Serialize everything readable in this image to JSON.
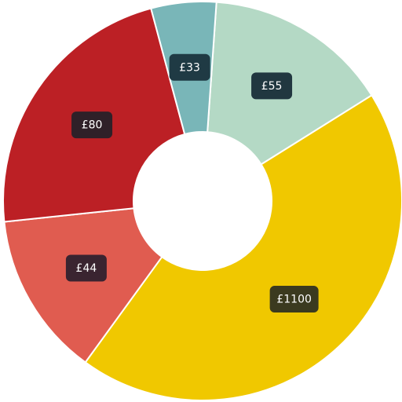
{
  "chart_data": {
    "type": "pie",
    "variant": "donut",
    "title": "",
    "slices": [
      {
        "label": "£55",
        "value": 55,
        "color": "#b4d9c5",
        "label_bg": "#213740"
      },
      {
        "label": "£1100",
        "value": 1100,
        "color": "#f0c800",
        "label_bg": "#3b3a1f"
      },
      {
        "label": "£44",
        "value": 44,
        "color": "#e05c50",
        "label_bg": "#3a2430"
      },
      {
        "label": "£80",
        "value": 80,
        "color": "#bc2025",
        "label_bg": "#2f2028"
      },
      {
        "label": "£33",
        "value": 33,
        "color": "#79b6b8",
        "label_bg": "#1f3a44"
      }
    ]
  }
}
